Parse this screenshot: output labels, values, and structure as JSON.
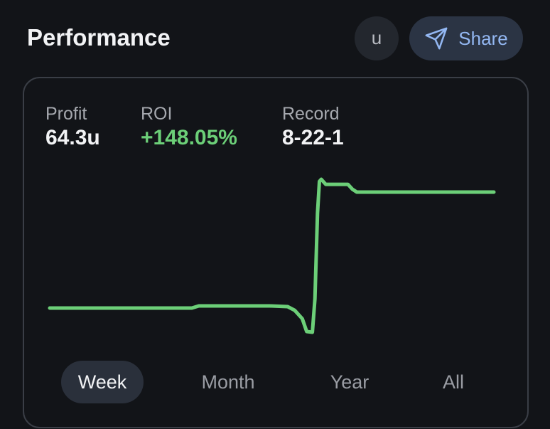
{
  "header": {
    "title": "Performance",
    "avatar": "u",
    "share": "Share"
  },
  "stats": [
    {
      "label": "Profit",
      "value": "64.3u"
    },
    {
      "label": "ROI",
      "value": "+148.05%"
    },
    {
      "label": "Record",
      "value": "8-22-1"
    }
  ],
  "chart_data": {
    "type": "line",
    "color": "#6ccf78",
    "x": [
      0,
      2.24,
      2.35,
      3.47,
      3.75,
      3.86,
      3.98,
      4.05,
      4.14,
      4.18,
      4.22,
      4.25,
      4.28,
      4.35,
      4.7,
      4.77,
      4.84,
      7
    ],
    "values": [
      0,
      0,
      1.2,
      1.2,
      0.8,
      -1.2,
      -5.9,
      -13.0,
      -13.4,
      5.1,
      52.5,
      70.2,
      71.4,
      68.6,
      68.6,
      65.9,
      64.3,
      64.3
    ]
  },
  "tabs": [
    "Week",
    "Month",
    "Year",
    "All"
  ],
  "selected_tab": 0
}
